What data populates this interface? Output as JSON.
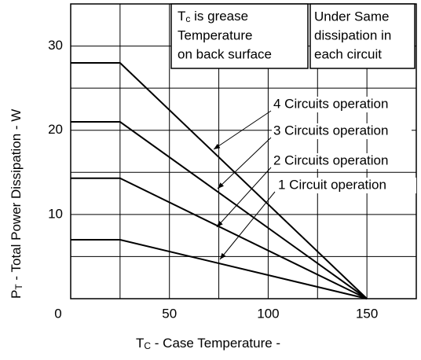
{
  "chart_data": {
    "type": "line",
    "x_label": {
      "main": "T",
      "sub": "C",
      "rest": " - Case Temperature -"
    },
    "y_label": {
      "main": "P",
      "sub": "T",
      "rest": " - Total Power Dissipation - W"
    },
    "notes": [
      {
        "prefix": "T",
        "sub": "c",
        "lines": [
          " is grease",
          "Temperature",
          "on back surface"
        ]
      },
      {
        "lines": [
          "Under Same",
          "dissipation in",
          "each circuit"
        ]
      }
    ],
    "x": [
      0,
      25,
      150
    ],
    "series": [
      {
        "name": "4 Circuits operation",
        "color": "#000000",
        "values": [
          28,
          28,
          0
        ]
      },
      {
        "name": "3 Circuits operation",
        "color": "#000000",
        "values": [
          21,
          21,
          0
        ]
      },
      {
        "name": "2 Circuits operation",
        "color": "#000000",
        "values": [
          14.3,
          14.3,
          0
        ]
      },
      {
        "name": "1 Circuit operation",
        "color": "#000000",
        "values": [
          7,
          7,
          0
        ]
      }
    ],
    "xlim": [
      0,
      175
    ],
    "xticks": [
      0,
      50,
      100,
      150
    ],
    "xgrid": [
      0,
      25,
      50,
      75,
      100,
      125,
      150,
      175
    ],
    "ylim": [
      0,
      35
    ],
    "yticks": [
      10,
      20,
      30
    ],
    "ygrid": [
      0,
      5,
      10,
      15,
      20,
      25,
      30,
      35
    ],
    "grid": true
  }
}
